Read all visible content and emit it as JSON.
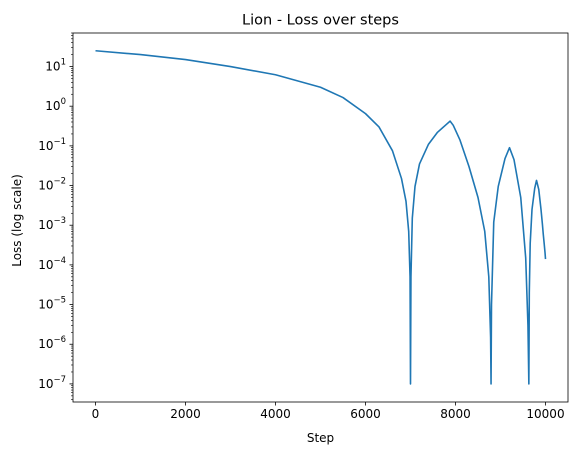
{
  "chart_data": {
    "type": "line",
    "title": "Lion - Loss over steps",
    "xlabel": "Step",
    "ylabel": "Loss (log scale)",
    "yscale": "log",
    "xlim": [
      -500,
      10500
    ],
    "ylim": [
      3.5e-08,
      70
    ],
    "grid": false,
    "xticks": [
      0,
      2000,
      4000,
      6000,
      8000,
      10000
    ],
    "xtick_labels": [
      "0",
      "2000",
      "4000",
      "6000",
      "8000",
      "10000"
    ],
    "yticks": [
      1e-07,
      1e-06,
      1e-05,
      0.0001,
      0.001,
      0.01,
      0.1,
      1,
      10
    ],
    "ytick_labels": [
      {
        "base": "10",
        "exp": "−7"
      },
      {
        "base": "10",
        "exp": "−6"
      },
      {
        "base": "10",
        "exp": "−5"
      },
      {
        "base": "10",
        "exp": "−4"
      },
      {
        "base": "10",
        "exp": "−3"
      },
      {
        "base": "10",
        "exp": "−2"
      },
      {
        "base": "10",
        "exp": "−1"
      },
      {
        "base": "10",
        "exp": "0"
      },
      {
        "base": "10",
        "exp": "1"
      }
    ],
    "series": [
      {
        "color": "#1f77b4",
        "x": [
          0,
          1000,
          2000,
          3000,
          4000,
          5000,
          5500,
          6000,
          6300,
          6600,
          6800,
          6900,
          6960,
          6990,
          7000,
          7010,
          7040,
          7100,
          7200,
          7400,
          7600,
          7800,
          7880,
          7950,
          8100,
          8300,
          8500,
          8650,
          8740,
          8780,
          8790,
          8800,
          8850,
          8950,
          9100,
          9200,
          9300,
          9450,
          9560,
          9610,
          9630,
          9640,
          9660,
          9700,
          9760,
          9800,
          9850,
          9900,
          9930,
          9950,
          9970,
          9990,
          10000
        ],
        "y": [
          25,
          20,
          15,
          10,
          6.2,
          3.0,
          1.65,
          0.65,
          0.3,
          0.075,
          0.015,
          0.004,
          0.0007,
          5e-05,
          1e-07,
          5e-05,
          0.0015,
          0.0095,
          0.035,
          0.11,
          0.22,
          0.35,
          0.42,
          0.33,
          0.14,
          0.03,
          0.005,
          0.0007,
          5e-05,
          1.5e-06,
          1e-07,
          1e-05,
          0.0012,
          0.0095,
          0.048,
          0.09,
          0.045,
          0.005,
          0.00015,
          3e-06,
          1e-07,
          2e-05,
          0.00035,
          0.0025,
          0.0085,
          0.0135,
          0.008,
          0.0025,
          0.0011,
          0.0006,
          0.00035,
          0.0002,
          0.00014
        ]
      }
    ]
  }
}
